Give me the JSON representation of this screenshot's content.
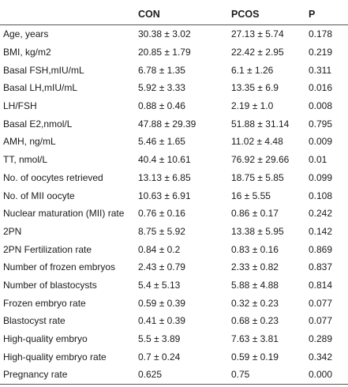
{
  "table": {
    "headers": {
      "variable": "",
      "con": "CON",
      "pcos": "PCOS",
      "p": "P"
    },
    "rows": [
      {
        "variable": "Age, years",
        "con": "30.38 ± 3.02",
        "pcos": "27.13 ± 5.74",
        "p": "0.178"
      },
      {
        "variable": "BMI, kg/m2",
        "con": "20.85 ± 1.79",
        "pcos": "22.42 ± 2.95",
        "p": "0.219"
      },
      {
        "variable": "Basal FSH,mIU/mL",
        "con": "6.78 ± 1.35",
        "pcos": "6.1 ± 1.26",
        "p": "0.311"
      },
      {
        "variable": "Basal LH,mIU/mL",
        "con": "5.92 ± 3.33",
        "pcos": "13.35 ± 6.9",
        "p": "0.016"
      },
      {
        "variable": "LH/FSH",
        "con": "0.88 ± 0.46",
        "pcos": "2.19 ± 1.0",
        "p": "0.008"
      },
      {
        "variable": "Basal E2,nmol/L",
        "con": "47.88 ± 29.39",
        "pcos": "51.88 ± 31.14",
        "p": "0.795"
      },
      {
        "variable": "AMH, ng/mL",
        "con": "5.46 ± 1.65",
        "pcos": "11.02 ± 4.48",
        "p": "0.009"
      },
      {
        "variable": "TT, nmol/L",
        "con": "40.4 ± 10.61",
        "pcos": "76.92 ± 29.66",
        "p": "0.01"
      },
      {
        "variable": "No. of oocytes retrieved",
        "con": "13.13 ± 6.85",
        "pcos": "18.75 ± 5.85",
        "p": "0.099"
      },
      {
        "variable": "No. of MII oocyte",
        "con": "10.63 ± 6.91",
        "pcos": "16 ± 5.55",
        "p": "0.108"
      },
      {
        "variable": "Nuclear maturation (MII) rate",
        "con": "0.76 ± 0.16",
        "pcos": "0.86 ± 0.17",
        "p": "0.242"
      },
      {
        "variable": "2PN",
        "con": "8.75 ± 5.92",
        "pcos": "13.38 ± 5.95",
        "p": "0.142"
      },
      {
        "variable": "2PN Fertilization rate",
        "con": "0.84 ± 0.2",
        "pcos": "0.83 ± 0.16",
        "p": "0.869"
      },
      {
        "variable": "Number of frozen embryos",
        "con": "2.43 ± 0.79",
        "pcos": "2.33 ± 0.82",
        "p": "0.837"
      },
      {
        "variable": "Number of blastocysts",
        "con": "5.4 ± 5.13",
        "pcos": "5.88 ± 4.88",
        "p": "0.814"
      },
      {
        "variable": "Frozen embryo rate",
        "con": "0.59 ± 0.39",
        "pcos": "0.32 ± 0.23",
        "p": "0.077"
      },
      {
        "variable": "Blastocyst rate",
        "con": "0.41 ± 0.39",
        "pcos": "0.68 ± 0.23",
        "p": "0.077"
      },
      {
        "variable": "High-quality embryo",
        "con": "5.5 ± 3.89",
        "pcos": "7.63 ± 3.81",
        "p": "0.289"
      },
      {
        "variable": "High-quality embryo rate",
        "con": "0.7 ± 0.24",
        "pcos": "0.59 ± 0.19",
        "p": "0.342"
      },
      {
        "variable": "Pregnancy rate",
        "con": "0.625",
        "pcos": "0.75",
        "p": "0.000"
      }
    ]
  }
}
